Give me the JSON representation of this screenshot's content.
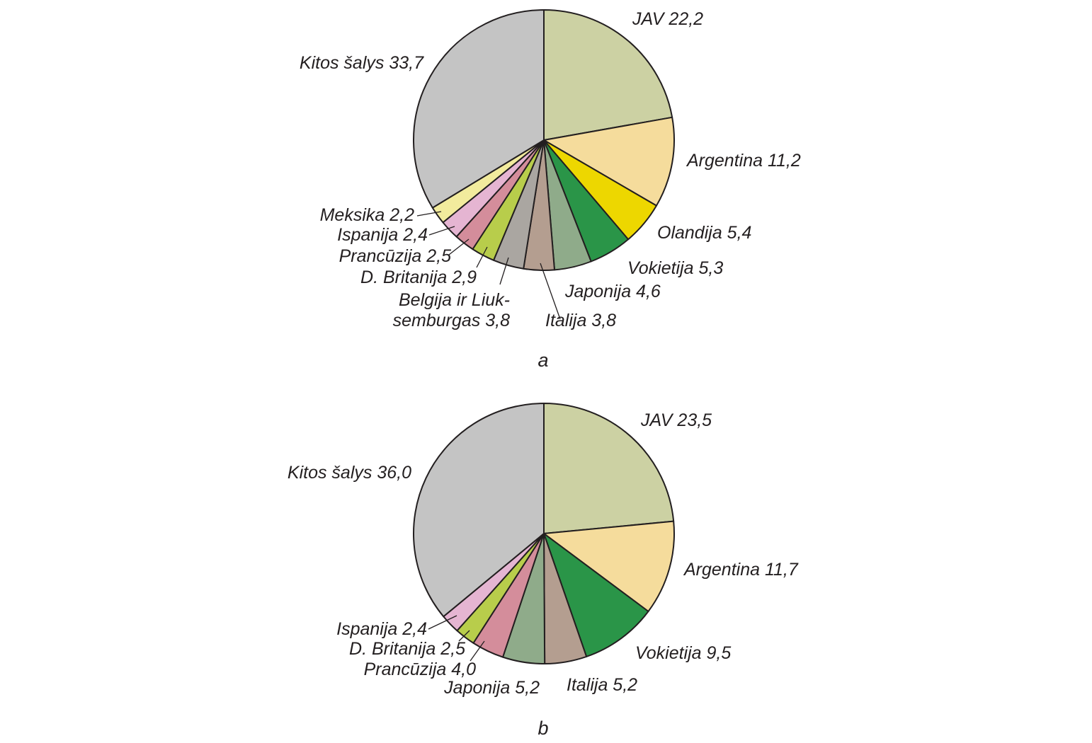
{
  "chart_data": [
    {
      "type": "pie",
      "caption": "a",
      "slices": [
        {
          "label": "JAV 22,2",
          "value": 22.2,
          "color": "#ccd1a3"
        },
        {
          "label": "Argentina 11,2",
          "value": 11.2,
          "color": "#f5dc9c"
        },
        {
          "label": "Olandija 5,4",
          "value": 5.4,
          "color": "#edd700"
        },
        {
          "label": "Vokietija 5,3",
          "value": 5.3,
          "color": "#2a9548"
        },
        {
          "label": "Japonija 4,6",
          "value": 4.6,
          "color": "#8fab8a"
        },
        {
          "label": "Italija 3,8",
          "value": 3.8,
          "color": "#b49e90"
        },
        {
          "label": "Belgija ir Liuk-|semburgas 3,8",
          "value": 3.8,
          "color": "#aaa6a1"
        },
        {
          "label": "D. Britanija 2,9",
          "value": 2.9,
          "color": "#b8cd4b"
        },
        {
          "label": "Prancūzija 2,5",
          "value": 2.5,
          "color": "#d48d9b"
        },
        {
          "label": "Ispanija 2,4",
          "value": 2.4,
          "color": "#e5b5d2"
        },
        {
          "label": "Meksika 2,2",
          "value": 2.2,
          "color": "#f2eb9d"
        },
        {
          "label": "Kitos šalys 33,7",
          "value": 33.7,
          "color": "#c4c4c4"
        }
      ]
    },
    {
      "type": "pie",
      "caption": "b",
      "slices": [
        {
          "label": "JAV 23,5",
          "value": 23.5,
          "color": "#ccd1a3"
        },
        {
          "label": "Argentina 11,7",
          "value": 11.7,
          "color": "#f5dc9c"
        },
        {
          "label": "Vokietija 9,5",
          "value": 9.5,
          "color": "#2a9548"
        },
        {
          "label": "Italija 5,2",
          "value": 5.2,
          "color": "#b49e90"
        },
        {
          "label": "Japonija 5,2",
          "value": 5.2,
          "color": "#8fab8a"
        },
        {
          "label": "Prancūzija 4,0",
          "value": 4.0,
          "color": "#d48d9b"
        },
        {
          "label": "D. Britanija 2,5",
          "value": 2.5,
          "color": "#b8cd4b"
        },
        {
          "label": "Ispanija 2,4",
          "value": 2.4,
          "color": "#e5b5d2"
        },
        {
          "label": "Kitos šalys 36,0",
          "value": 36.0,
          "color": "#c4c4c4"
        }
      ]
    }
  ]
}
